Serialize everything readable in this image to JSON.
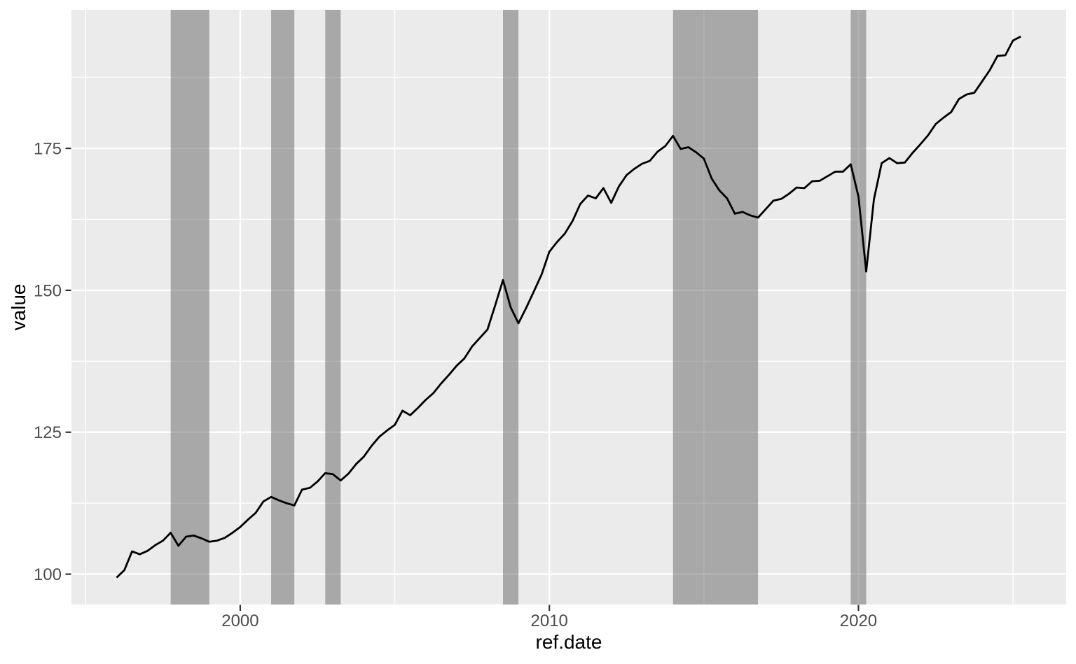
{
  "chart_data": {
    "type": "line",
    "title": "",
    "xlabel": "ref.date",
    "ylabel": "value",
    "legend": "none",
    "grid": true,
    "series_name": "value",
    "x_start": 1996.0,
    "x_step": 0.25,
    "x_end": 2025.25,
    "values": [
      99.4,
      100.7,
      104.0,
      103.5,
      104.1,
      105.1,
      105.9,
      107.3,
      105.0,
      106.6,
      106.8,
      106.3,
      105.7,
      105.9,
      106.4,
      107.3,
      108.3,
      109.6,
      110.8,
      112.8,
      113.6,
      113.0,
      112.5,
      112.1,
      114.9,
      115.2,
      116.3,
      117.8,
      117.6,
      116.5,
      117.7,
      119.4,
      120.7,
      122.6,
      124.2,
      125.3,
      126.3,
      128.8,
      128.0,
      129.3,
      130.7,
      131.9,
      133.6,
      135.1,
      136.7,
      138.0,
      140.1,
      141.6,
      143.1,
      147.4,
      151.8,
      147.0,
      144.2,
      146.9,
      149.8,
      152.8,
      156.8,
      158.5,
      160.0,
      162.2,
      165.2,
      166.7,
      166.2,
      168.0,
      165.4,
      168.3,
      170.3,
      171.4,
      172.3,
      172.8,
      174.4,
      175.4,
      177.2,
      174.9,
      175.2,
      174.3,
      173.2,
      169.7,
      167.6,
      166.2,
      163.5,
      163.8,
      163.2,
      162.8,
      164.3,
      165.8,
      166.1,
      167.0,
      168.1,
      168.0,
      169.2,
      169.3,
      170.1,
      170.9,
      170.9,
      172.2,
      166.5,
      153.3,
      166.0,
      172.4,
      173.3,
      172.4,
      172.5,
      174.2,
      175.7,
      177.3,
      179.3,
      180.4,
      181.4,
      183.7,
      184.5,
      184.8,
      186.8,
      188.8,
      191.3,
      191.4,
      194.0,
      194.7
    ],
    "shaded_bands": [
      [
        1997.75,
        1999.0
      ],
      [
        2001.0,
        2001.75
      ],
      [
        2002.75,
        2003.25
      ],
      [
        2008.5,
        2009.0
      ],
      [
        2014.0,
        2016.75
      ],
      [
        2019.75,
        2020.25
      ]
    ],
    "x_ticks": [
      2000,
      2010,
      2020
    ],
    "x_tick_labels": [
      "2000",
      "2010",
      "2020"
    ],
    "x_minor_ticks": [
      1995,
      2005,
      2015,
      2025
    ],
    "y_ticks": [
      100,
      125,
      150,
      175
    ],
    "y_tick_labels": [
      "100",
      "125",
      "150",
      "175"
    ],
    "y_minor_ticks": [
      112.5,
      137.5,
      162.5,
      187.5
    ],
    "xlim": [
      1994.54,
      2026.72
    ],
    "ylim": [
      94.65,
      199.41
    ],
    "colors": {
      "figure_bg": "#FFFFFF",
      "panel_bg": "#EBEBEB",
      "grid": "#FFFFFF",
      "band_fill": "rgba(102,102,102,0.5)",
      "line": "#000000",
      "tick_text": "#4D4D4D",
      "tick_mark": "#333333",
      "axis_title": "#000000"
    }
  }
}
